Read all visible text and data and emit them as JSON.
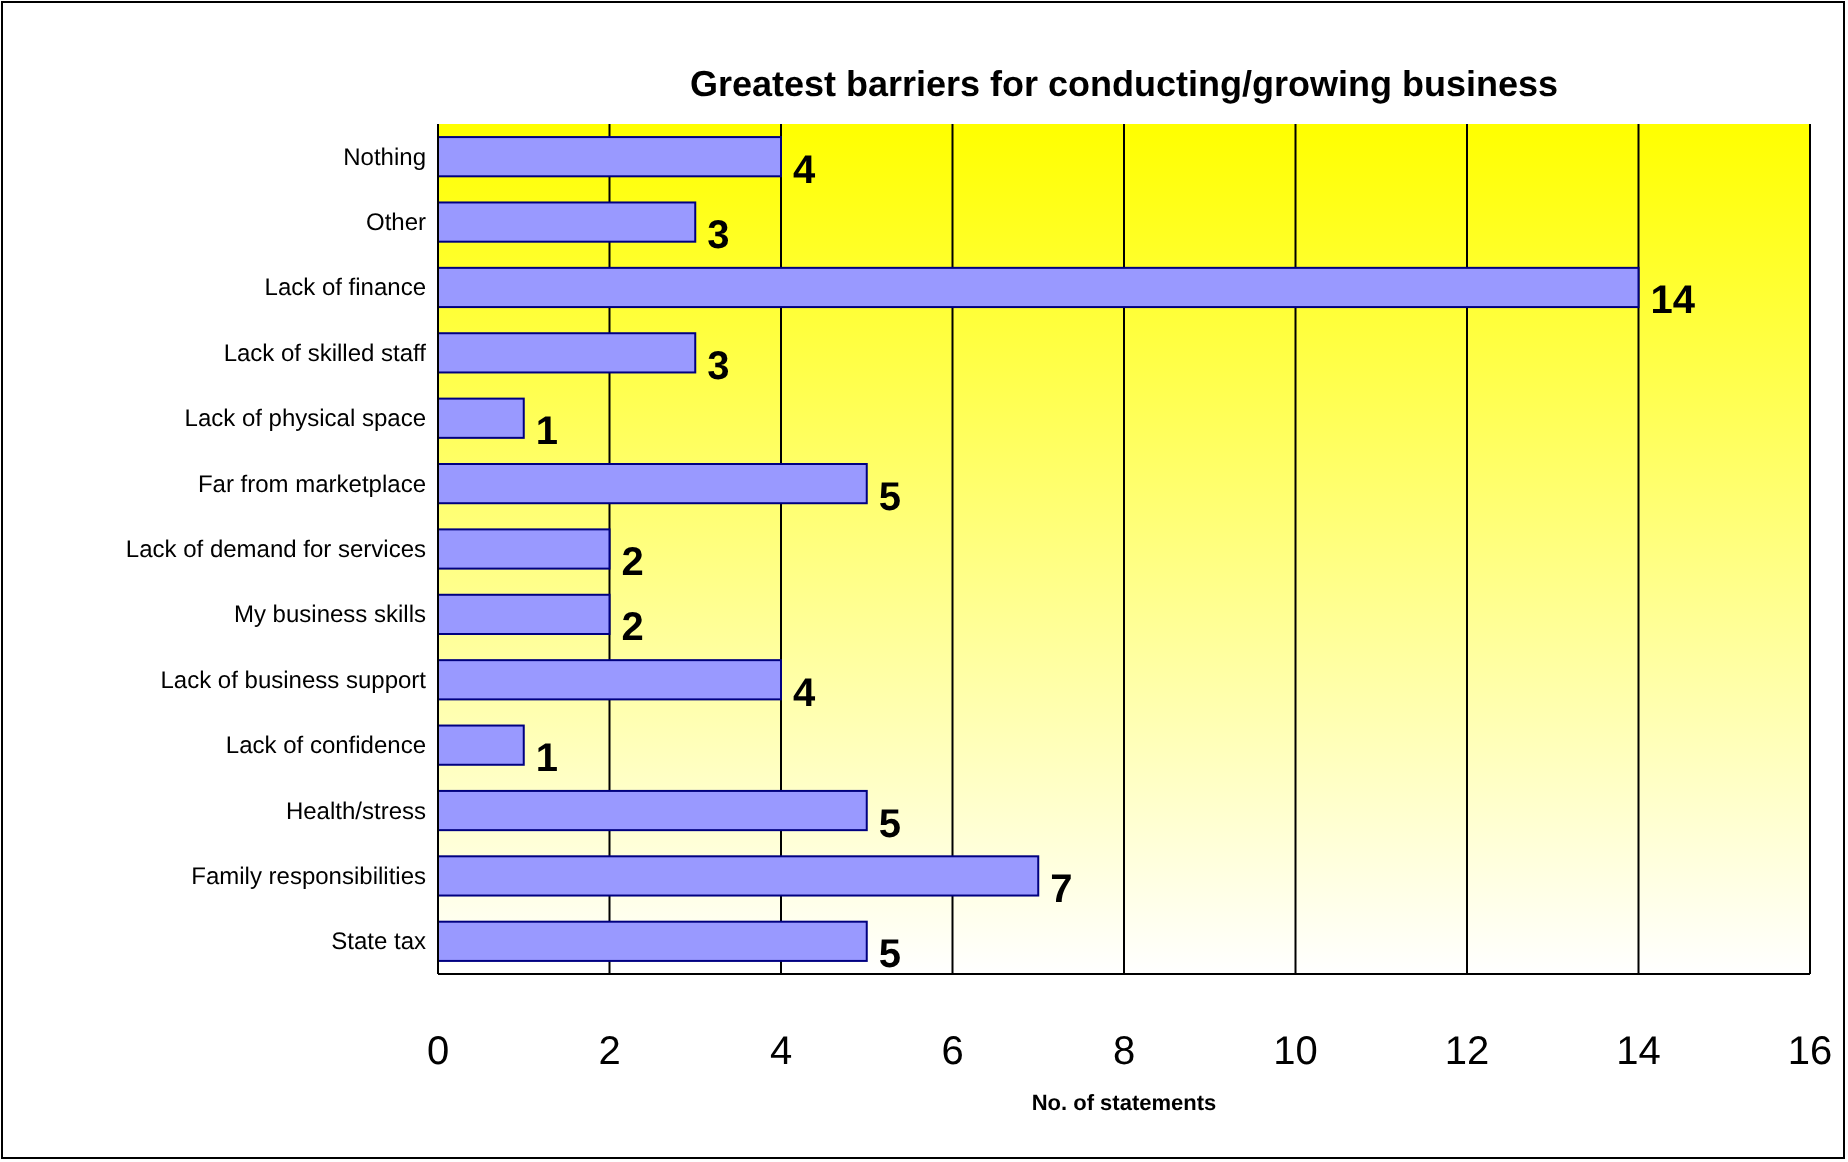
{
  "chart_data": {
    "type": "bar",
    "orientation": "horizontal",
    "title": "Greatest barriers for conducting/growing business",
    "xlabel": "No. of statements",
    "categories": [
      "Nothing",
      "Other",
      "Lack of finance",
      "Lack of skilled staff",
      "Lack of physical space",
      "Far from marketplace",
      "Lack of demand for services",
      "My business skills",
      "Lack of business support",
      "Lack of confidence",
      "Health/stress",
      "Family responsibilities",
      "State tax"
    ],
    "values": [
      4,
      3,
      14,
      3,
      1,
      5,
      2,
      2,
      4,
      1,
      5,
      7,
      5
    ],
    "color": "#9999ff",
    "xlim": [
      0,
      16
    ],
    "xticks": [
      0,
      2,
      4,
      6,
      8,
      10,
      12,
      14,
      16
    ],
    "grid": "x",
    "data_labels": true
  }
}
